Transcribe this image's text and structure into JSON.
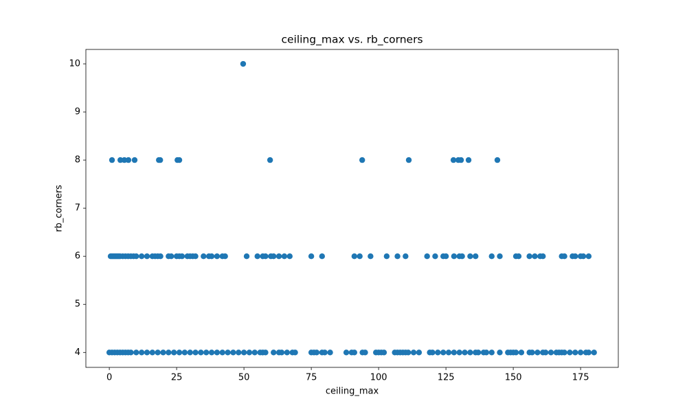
{
  "chart_data": {
    "type": "scatter",
    "title": "ceiling_max vs. rb_corners",
    "xlabel": "ceiling_max",
    "ylabel": "rb_corners",
    "color": "#1f77b4",
    "xlim": [
      -8.7,
      189
    ],
    "ylim": [
      3.69,
      10.3
    ],
    "xticks": [
      0,
      25,
      50,
      75,
      100,
      125,
      150,
      175
    ],
    "yticks": [
      4,
      5,
      6,
      7,
      8,
      9,
      10
    ],
    "x": [
      49.7,
      1,
      4.1,
      5.6,
      7.1,
      9.4,
      18.4,
      18.9,
      25.3,
      26,
      59.7,
      93.9,
      111.2,
      127.8,
      129.6,
      130.6,
      133.4,
      144.1,
      0.5,
      1,
      1.5,
      2,
      2.5,
      3,
      3.5,
      4,
      5,
      6,
      7,
      8,
      9,
      10,
      12,
      14,
      16,
      17,
      18,
      19,
      22,
      23,
      25,
      26,
      27,
      29,
      30,
      31,
      32,
      35,
      37,
      38,
      40,
      42,
      43,
      51,
      55,
      57,
      58,
      60,
      61,
      63,
      65,
      67,
      75,
      79,
      91,
      93,
      97,
      103,
      107,
      110,
      118,
      121,
      124,
      125,
      128,
      130,
      131,
      134,
      136,
      142,
      145,
      151,
      152,
      156,
      158,
      160,
      161,
      168,
      169,
      172,
      173,
      175,
      176,
      178,
      0,
      1,
      2,
      3,
      4,
      6,
      8,
      10,
      12,
      14,
      16,
      18,
      20,
      22,
      24,
      26,
      28,
      30,
      32,
      34,
      36,
      38,
      40,
      42,
      44,
      46,
      48,
      50,
      52,
      54,
      56,
      57,
      58,
      61,
      63,
      64,
      66,
      68,
      69,
      75,
      76,
      77,
      79,
      80,
      82,
      88,
      90,
      91,
      94,
      95,
      99,
      100,
      101,
      102,
      106,
      107,
      108,
      109,
      110,
      111,
      113,
      115,
      119,
      120,
      122,
      124,
      126,
      128,
      130,
      132,
      134,
      136,
      137,
      139,
      140,
      142,
      145,
      148,
      149,
      150,
      151,
      153,
      156,
      157,
      159,
      161,
      162,
      164,
      166,
      167,
      168,
      169,
      171,
      173,
      175,
      177,
      178,
      180,
      5,
      7
    ],
    "values": [
      10,
      8,
      8,
      8,
      8,
      8,
      8,
      8,
      8,
      8,
      8,
      8,
      8,
      8,
      8,
      8,
      8,
      8,
      6,
      6,
      6,
      6,
      6,
      6,
      6,
      6,
      6,
      6,
      6,
      6,
      6,
      6,
      6,
      6,
      6,
      6,
      6,
      6,
      6,
      6,
      6,
      6,
      6,
      6,
      6,
      6,
      6,
      6,
      6,
      6,
      6,
      6,
      6,
      6,
      6,
      6,
      6,
      6,
      6,
      6,
      6,
      6,
      6,
      6,
      6,
      6,
      6,
      6,
      6,
      6,
      6,
      6,
      6,
      6,
      6,
      6,
      6,
      6,
      6,
      6,
      6,
      6,
      6,
      6,
      6,
      6,
      6,
      6,
      6,
      6,
      6,
      6,
      6,
      6,
      4,
      4,
      4,
      4,
      4,
      4,
      4,
      4,
      4,
      4,
      4,
      4,
      4,
      4,
      4,
      4,
      4,
      4,
      4,
      4,
      4,
      4,
      4,
      4,
      4,
      4,
      4,
      4,
      4,
      4,
      4,
      4,
      4,
      4,
      4,
      4,
      4,
      4,
      4,
      4,
      4,
      4,
      4,
      4,
      4,
      4,
      4,
      4,
      4,
      4,
      4,
      4,
      4,
      4,
      4,
      4,
      4,
      4,
      4,
      4,
      4,
      4,
      4,
      4,
      4,
      4,
      4,
      4,
      4,
      4,
      4,
      4,
      4,
      4,
      4,
      4,
      4,
      4,
      4,
      4,
      4,
      4,
      4,
      4,
      4,
      4,
      4,
      4,
      4,
      4,
      4,
      4,
      4,
      4,
      4,
      4,
      4,
      4,
      4,
      4
    ]
  }
}
